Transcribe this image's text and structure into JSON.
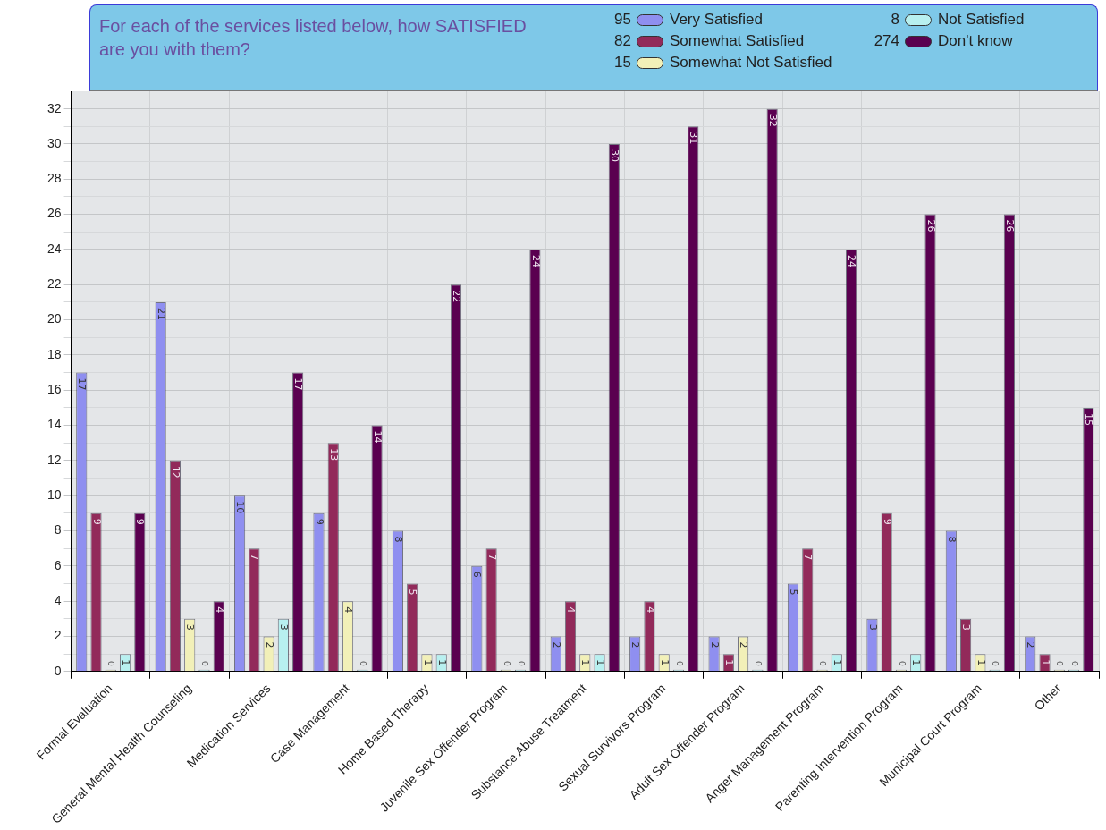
{
  "chart_data": {
    "type": "bar",
    "title": "For each of the services listed below, how SATISFIED are you with them?",
    "categories": [
      "Formal Evaluation",
      "General Mental Health Counseling",
      "Medication Services",
      "Case Management",
      "Home Based Therapy",
      "Juvenile Sex Offender Program",
      "Substance Abuse Treatment",
      "Sexual Survivors Program",
      "Adult Sex Offender Program",
      "Anger Management Program",
      "Parenting Intervention Program",
      "Municipal Court Program",
      "Other"
    ],
    "series": [
      {
        "name": "Very Satisfied",
        "color": "#8f8ff0",
        "values": [
          17,
          21,
          10,
          9,
          8,
          6,
          2,
          2,
          2,
          5,
          3,
          8,
          2
        ]
      },
      {
        "name": "Somewhat Satisfied",
        "color": "#922a5a",
        "values": [
          9,
          12,
          7,
          13,
          5,
          7,
          4,
          4,
          1,
          7,
          9,
          3,
          1
        ]
      },
      {
        "name": "Somewhat Not Satisfied",
        "color": "#f2f0b8",
        "values": [
          0,
          3,
          2,
          4,
          1,
          0,
          1,
          1,
          2,
          0,
          0,
          1,
          0
        ]
      },
      {
        "name": "Not Satisfied",
        "color": "#b8f0f0",
        "values": [
          1,
          0,
          3,
          0,
          1,
          0,
          1,
          0,
          0,
          1,
          1,
          0,
          0
        ]
      },
      {
        "name": "Don't know",
        "color": "#5a0050",
        "values": [
          9,
          4,
          17,
          14,
          22,
          24,
          30,
          31,
          32,
          24,
          26,
          26,
          15
        ]
      }
    ],
    "annotations": [
      "95",
      "82",
      "15",
      "8",
      "274"
    ],
    "ylim": [
      0,
      33
    ],
    "yticks": [
      0,
      {
        "value": 1,
        "label": null
      },
      2,
      {
        "value": 3,
        "label": null
      },
      4,
      {
        "value": 5,
        "label": null
      },
      6,
      {
        "value": 7,
        "label": null
      },
      8,
      {
        "value": 9,
        "label": null
      },
      10,
      {
        "value": 11,
        "label": null
      },
      12,
      {
        "value": 13,
        "label": null
      },
      14,
      {
        "value": 15,
        "label": null
      },
      16,
      {
        "value": 17,
        "label": null
      },
      18,
      {
        "value": 19,
        "label": null
      },
      20,
      {
        "value": 21,
        "label": null
      },
      22,
      {
        "value": 23,
        "label": null
      },
      24,
      {
        "value": 25,
        "label": null
      },
      26,
      {
        "value": 27,
        "label": null
      },
      28,
      {
        "value": 29,
        "label": null
      },
      30,
      {
        "value": 31,
        "label": null
      },
      32
    ],
    "grid": true,
    "legend": "top right",
    "data_labels": true
  }
}
